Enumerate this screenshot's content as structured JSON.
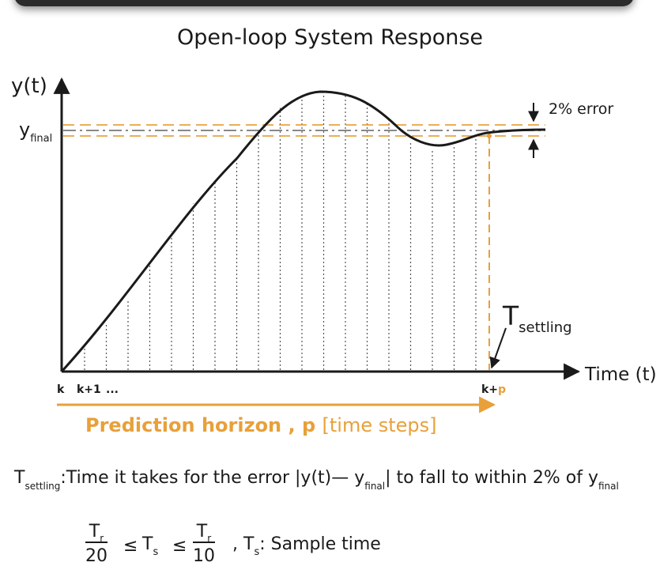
{
  "title": "Open-loop System Response",
  "y_axis": {
    "label": "y(t)",
    "final_main": "y",
    "final_sub": "final"
  },
  "x_axis": {
    "label": "Time (t)"
  },
  "error_band": {
    "label": "2% error"
  },
  "settling": {
    "main": "T",
    "sub": "settling"
  },
  "ticks": {
    "k": "k",
    "k1": "k+1",
    "dots": "...",
    "kp_main": "k+",
    "kp_p": "p"
  },
  "horizon": {
    "bold": "Prediction horizon , p",
    "unit": "[time steps]"
  },
  "definition": {
    "term_main": "T",
    "term_sub": "settling",
    "text1": ":Time it takes for the error ",
    "abs_open": "|y(t)— y",
    "abs_sub": "final",
    "abs_close": "|",
    "text2": " to fall to within 2% of y",
    "end_sub": "final"
  },
  "formula": {
    "num_main": "T",
    "num_sub": "r",
    "den_left": "20",
    "den_right": "10",
    "leq": "≤",
    "ts_main": "T",
    "ts_sub": "s",
    "suffix": ", T",
    "suffix_sub": "s",
    "suffix_text": ": Sample time"
  },
  "colors": {
    "accent": "#e8a03a",
    "ink": "#1a1a1a",
    "reference": "#888888"
  }
}
